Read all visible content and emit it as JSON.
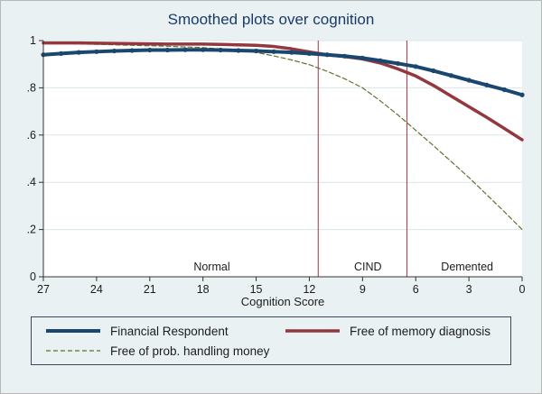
{
  "title": "Smoothed plots over cognition",
  "background_color": "#e9f1f2",
  "chart_data": {
    "type": "line",
    "title": "Smoothed plots over cognition",
    "xlabel": "Cognition Score",
    "ylabel": "",
    "xlim": [
      27,
      0
    ],
    "ylim": [
      0,
      1
    ],
    "grid": "horizontal",
    "legend_position": "bottom",
    "x_ticks": [
      27,
      24,
      21,
      18,
      15,
      12,
      9,
      6,
      3,
      0
    ],
    "y_ticks": [
      0,
      0.2,
      0.4,
      0.6,
      0.8,
      1
    ],
    "y_tick_labels": [
      "0",
      ".2",
      ".4",
      ".6",
      ".8",
      "1"
    ],
    "x": [
      27,
      26,
      25,
      24,
      23,
      22,
      21,
      20,
      19,
      18,
      17,
      16,
      15,
      14,
      13,
      12,
      11,
      10,
      9,
      8,
      7,
      6,
      5,
      4,
      3,
      2,
      1,
      0
    ],
    "series": [
      {
        "name": "Financial Respondent",
        "color": "#1a476f",
        "width": 4,
        "dash": "",
        "markers": true,
        "values": [
          0.94,
          0.945,
          0.95,
          0.953,
          0.956,
          0.958,
          0.96,
          0.96,
          0.961,
          0.961,
          0.96,
          0.958,
          0.956,
          0.953,
          0.95,
          0.945,
          0.94,
          0.934,
          0.926,
          0.915,
          0.903,
          0.89,
          0.872,
          0.852,
          0.832,
          0.812,
          0.792,
          0.77
        ]
      },
      {
        "name": "Free of memory diagnosis",
        "color": "#93383e",
        "width": 3.5,
        "dash": "",
        "markers": false,
        "values": [
          0.99,
          0.99,
          0.99,
          0.989,
          0.988,
          0.987,
          0.986,
          0.985,
          0.985,
          0.985,
          0.984,
          0.982,
          0.98,
          0.975,
          0.965,
          0.952,
          0.94,
          0.932,
          0.922,
          0.905,
          0.88,
          0.85,
          0.81,
          0.765,
          0.72,
          0.675,
          0.628,
          0.58
        ]
      },
      {
        "name": "Free of prob. handling money",
        "color": "#5f7230",
        "width": 1.2,
        "dash": "5,3",
        "markers": false,
        "values": [
          0.99,
          0.988,
          0.986,
          0.984,
          0.982,
          0.98,
          0.978,
          0.976,
          0.973,
          0.97,
          0.965,
          0.958,
          0.95,
          0.935,
          0.918,
          0.898,
          0.87,
          0.838,
          0.8,
          0.745,
          0.685,
          0.62,
          0.555,
          0.488,
          0.42,
          0.348,
          0.275,
          0.2
        ]
      }
    ],
    "vlines": [
      {
        "x": 11.5
      },
      {
        "x": 6.5
      }
    ],
    "vline_color": "#a33540",
    "region_labels": [
      {
        "text": "Normal",
        "x": 17.5
      },
      {
        "text": "CIND",
        "x": 8.7
      },
      {
        "text": "Demented",
        "x": 3.1
      }
    ]
  }
}
